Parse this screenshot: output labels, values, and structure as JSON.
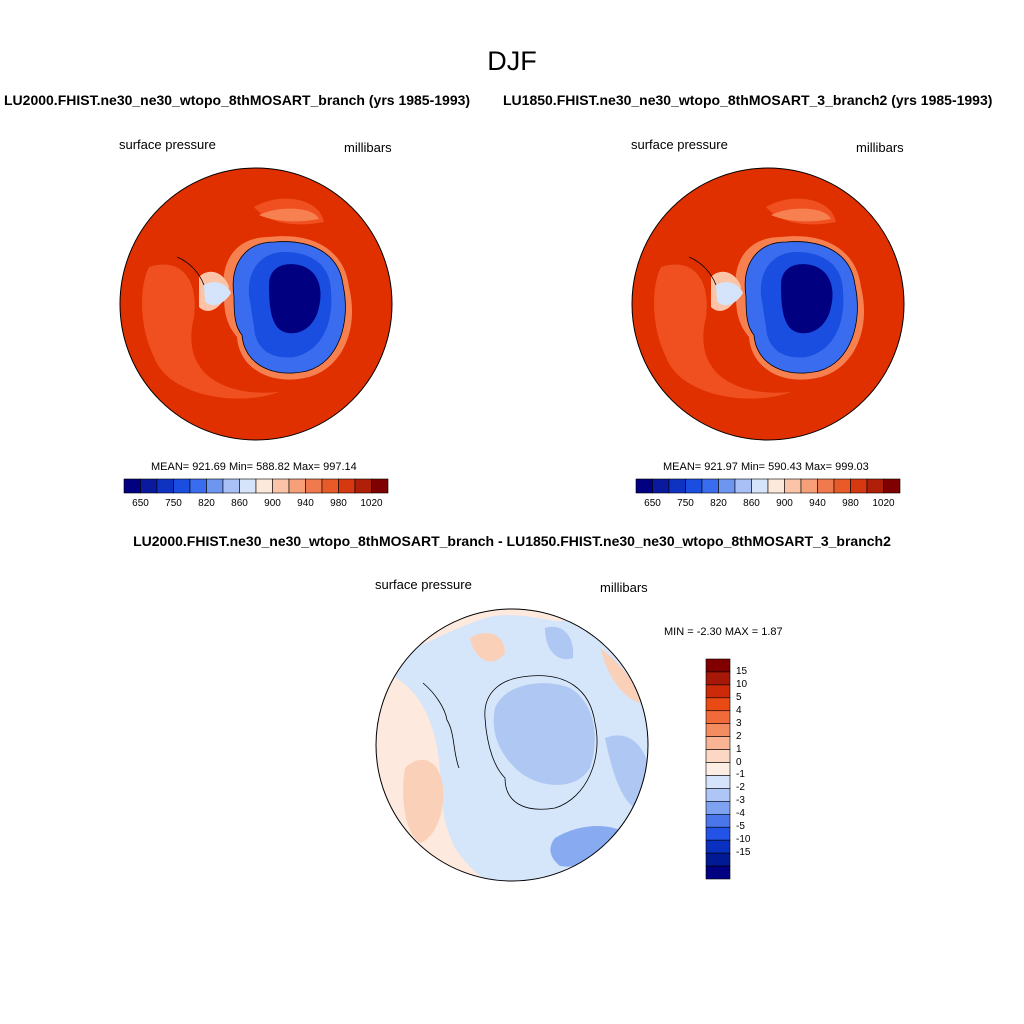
{
  "figure": {
    "title": "DJF"
  },
  "panels": [
    {
      "id": "left",
      "title": "LU2000.FHIST.ne30_ne30_wtopo_8thMOSART_branch (yrs 1985-1993)",
      "variable": "surface pressure",
      "units": "millibars",
      "stats": "MEAN= 921.69  Min= 588.82  Max= 997.14"
    },
    {
      "id": "right",
      "title": "LU1850.FHIST.ne30_ne30_wtopo_8thMOSART_3_branch2 (yrs 1985-1993)",
      "variable": "surface pressure",
      "units": "millibars",
      "stats": "MEAN= 921.97  Min= 590.43  Max= 999.03"
    }
  ],
  "colorbar": {
    "tick_labels": [
      "650",
      "750",
      "820",
      "860",
      "900",
      "940",
      "980",
      "1020"
    ],
    "colors": [
      "#000080",
      "#0a1a9e",
      "#0d33c0",
      "#1a4ee0",
      "#3a6cf0",
      "#6e96f0",
      "#a8c0f5",
      "#d5e4fa",
      "#fde8dc",
      "#fbc4a8",
      "#f7a078",
      "#f07a4e",
      "#e85a28",
      "#d63810",
      "#b02008",
      "#7f0000"
    ]
  },
  "difference": {
    "title": "LU2000.FHIST.ne30_ne30_wtopo_8thMOSART_branch - LU1850.FHIST.ne30_ne30_wtopo_8thMOSART_3_branch2",
    "variable": "surface pressure",
    "units": "millibars",
    "minmax": "MIN =  -2.30 MAX =   1.87",
    "colorbar": {
      "tick_labels": [
        "15",
        "10",
        "5",
        "4",
        "3",
        "2",
        "1",
        "0",
        "-1",
        "-2",
        "-3",
        "-4",
        "-5",
        "-10",
        "-15"
      ],
      "colors": [
        "#800000",
        "#a81808",
        "#cc2a08",
        "#ea4a14",
        "#f06a3a",
        "#f48c62",
        "#f8b494",
        "#fcd8c4",
        "#fdeee4",
        "#d5e4fa",
        "#aec6f5",
        "#7ea2f0",
        "#4a76ea",
        "#2252e6",
        "#0a30c0",
        "#001a96",
        "#000080"
      ]
    }
  },
  "map_colors": {
    "ocean_high": "#e03000",
    "ocean_mid": "#f05020",
    "ocean_light": "#f78050",
    "diff_pos": "#fbd0b8",
    "diff_pos_light": "#fde9dd",
    "diff_neg_light": "#d5e6fb",
    "diff_neg": "#afc8f3",
    "diff_neg_strong": "#88aaf0"
  }
}
